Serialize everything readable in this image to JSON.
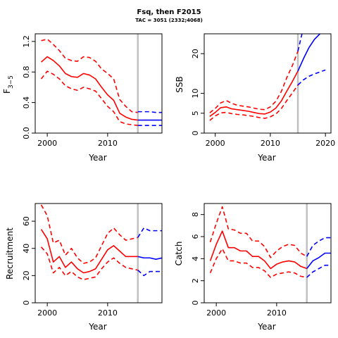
{
  "title": "Fsq, then F2015",
  "subtitle": "TAC = 3051 (2332;4068)",
  "colors": {
    "historical": "#ff0000",
    "projection": "#0000ff",
    "divider": "#c0c0c0"
  },
  "chart_data": [
    {
      "type": "line",
      "name": "fbar",
      "xlabel": "Year",
      "ylabel_main": "F",
      "ylabel_bar": "‾",
      "ylabel_sub": "3−5",
      "xlim": [
        1998,
        2019
      ],
      "ylim": [
        0,
        1.3
      ],
      "xticks": [
        2000,
        2010
      ],
      "yticks": [
        0.0,
        0.4,
        0.8,
        1.2
      ],
      "ytick_labels": [
        "0.0",
        "0.4",
        "0.8",
        "1.2"
      ],
      "divider_x": 2015,
      "historical": {
        "x": [
          1999,
          2000,
          2001,
          2002,
          2003,
          2004,
          2005,
          2006,
          2007,
          2008,
          2009,
          2010,
          2011,
          2012,
          2013,
          2014,
          2015
        ],
        "median": [
          0.93,
          1.0,
          0.95,
          0.88,
          0.78,
          0.74,
          0.73,
          0.78,
          0.76,
          0.71,
          0.6,
          0.5,
          0.43,
          0.26,
          0.21,
          0.18,
          0.17
        ],
        "lower": [
          0.71,
          0.81,
          0.77,
          0.71,
          0.62,
          0.58,
          0.56,
          0.6,
          0.58,
          0.55,
          0.45,
          0.35,
          0.28,
          0.15,
          0.12,
          0.11,
          0.1
        ],
        "upper": [
          1.21,
          1.23,
          1.16,
          1.08,
          0.98,
          0.95,
          0.94,
          1.0,
          0.99,
          0.94,
          0.84,
          0.78,
          0.71,
          0.44,
          0.35,
          0.28,
          0.27
        ]
      },
      "projection": {
        "x": [
          2015,
          2016,
          2017,
          2018,
          2019
        ],
        "median": [
          0.17,
          0.17,
          0.17,
          0.17,
          0.17
        ],
        "lower": [
          0.1,
          0.1,
          0.1,
          0.1,
          0.1
        ],
        "upper": [
          0.28,
          0.28,
          0.28,
          0.27,
          0.27
        ]
      }
    },
    {
      "type": "line",
      "name": "ssb",
      "xlabel": "Year",
      "ylabel": "SSB",
      "xlim": [
        1998,
        2021
      ],
      "ylim": [
        0,
        25
      ],
      "xticks": [
        2000,
        2010,
        2020
      ],
      "yticks": [
        0,
        5,
        10,
        20
      ],
      "ytick_labels": [
        "0",
        "5",
        "10",
        "20"
      ],
      "divider_x": 2015,
      "historical": {
        "x": [
          1999,
          2000,
          2001,
          2002,
          2003,
          2004,
          2005,
          2006,
          2007,
          2008,
          2009,
          2010,
          2011,
          2012,
          2013,
          2014,
          2015
        ],
        "median": [
          4.2,
          5.2,
          6.4,
          6.6,
          6.1,
          5.9,
          5.7,
          5.5,
          5.2,
          4.9,
          4.8,
          5.3,
          6.3,
          8.1,
          10.6,
          13.0,
          15.6
        ],
        "lower": [
          3.2,
          4.3,
          5.1,
          5.2,
          4.9,
          4.7,
          4.6,
          4.4,
          4.2,
          3.9,
          3.7,
          4.1,
          4.8,
          6.2,
          8.2,
          10.1,
          12.1
        ],
        "upper": [
          5.1,
          6.2,
          7.6,
          8.2,
          7.5,
          7.0,
          6.8,
          6.6,
          6.3,
          6.0,
          5.9,
          6.6,
          8.0,
          10.5,
          14.0,
          17.0,
          20.6
        ]
      },
      "projection": {
        "x": [
          2015,
          2016,
          2017,
          2018,
          2019,
          2020
        ],
        "median": [
          15.6,
          18.7,
          21.5,
          23.6,
          25.0,
          26.0
        ],
        "lower": [
          12.1,
          13.4,
          14.3,
          14.9,
          15.4,
          15.9
        ],
        "upper": [
          20.6,
          26.5,
          31.0,
          34.0,
          36.0,
          37.5
        ]
      }
    },
    {
      "type": "line",
      "name": "recruitment",
      "xlabel": "Year",
      "ylabel": "Recruitment",
      "xlim": [
        1998,
        2019
      ],
      "ylim": [
        0,
        73
      ],
      "xticks": [
        2000,
        2010
      ],
      "yticks": [
        0,
        20,
        40,
        60
      ],
      "ytick_labels": [
        "0",
        "20",
        "40",
        "60"
      ],
      "divider_x": 2015,
      "historical": {
        "x": [
          1999,
          2000,
          2001,
          2002,
          2003,
          2004,
          2005,
          2006,
          2007,
          2008,
          2009,
          2010,
          2011,
          2012,
          2013,
          2014,
          2015
        ],
        "median": [
          54,
          47,
          30,
          34,
          26,
          30,
          25,
          22,
          23,
          25,
          32,
          39,
          42,
          38,
          34,
          34,
          34
        ],
        "lower": [
          41,
          36,
          22,
          26,
          20,
          23,
          19,
          17,
          18,
          19,
          25,
          30,
          33,
          29,
          26,
          25,
          24
        ],
        "upper": [
          72,
          64,
          44,
          46,
          35,
          40,
          33,
          29,
          30,
          33,
          42,
          51,
          55,
          50,
          46,
          47,
          48
        ]
      },
      "projection": {
        "x": [
          2015,
          2016,
          2017,
          2018,
          2019
        ],
        "median": [
          34,
          33,
          33,
          32,
          33
        ],
        "lower": [
          24,
          20,
          23,
          23,
          23
        ],
        "upper": [
          48,
          55,
          53,
          53,
          53
        ]
      }
    },
    {
      "type": "line",
      "name": "catch",
      "xlabel": "Year",
      "ylabel": "Catch",
      "xlim": [
        1998,
        2019
      ],
      "ylim": [
        0,
        9
      ],
      "xticks": [
        2000,
        2010
      ],
      "yticks": [
        0,
        2,
        4,
        6,
        8
      ],
      "ytick_labels": [
        "0",
        "2",
        "4",
        "6",
        "8"
      ],
      "divider_x": 2015,
      "historical": {
        "x": [
          1999,
          2000,
          2001,
          2002,
          2003,
          2004,
          2005,
          2006,
          2007,
          2008,
          2009,
          2010,
          2011,
          2012,
          2013,
          2014,
          2015
        ],
        "median": [
          3.8,
          5.3,
          6.5,
          5.0,
          5.0,
          4.7,
          4.7,
          4.2,
          4.2,
          3.8,
          3.1,
          3.5,
          3.7,
          3.8,
          3.7,
          3.3,
          3.1
        ],
        "lower": [
          2.7,
          4.0,
          4.9,
          3.8,
          3.8,
          3.6,
          3.6,
          3.2,
          3.2,
          2.9,
          2.3,
          2.6,
          2.7,
          2.8,
          2.7,
          2.4,
          2.3
        ],
        "upper": [
          5.5,
          7.2,
          8.7,
          6.7,
          6.6,
          6.3,
          6.3,
          5.6,
          5.6,
          5.1,
          4.1,
          4.7,
          5.1,
          5.3,
          5.2,
          4.5,
          4.2
        ]
      },
      "projection": {
        "x": [
          2015,
          2016,
          2017,
          2018,
          2019
        ],
        "median": [
          3.1,
          3.8,
          4.1,
          4.5,
          4.5
        ],
        "lower": [
          2.3,
          2.8,
          3.1,
          3.4,
          3.4
        ],
        "upper": [
          4.2,
          5.2,
          5.6,
          5.9,
          5.9
        ]
      }
    }
  ]
}
